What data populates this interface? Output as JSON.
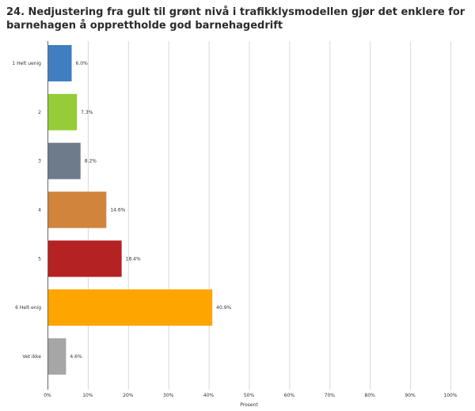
{
  "chart_data": {
    "type": "bar",
    "orientation": "horizontal",
    "title": "24. Nedjustering fra gult til grønt nivå i trafikklysmodellen gjør det enklere for barnehagen å opprettholde god barnehagedrift",
    "xlabel": "Prosent",
    "ylabel": "",
    "xlim": [
      0,
      100
    ],
    "x_ticks": [
      0,
      10,
      20,
      30,
      40,
      50,
      60,
      70,
      80,
      90,
      100
    ],
    "x_tick_labels": [
      "0%",
      "10%",
      "20%",
      "30%",
      "40%",
      "50%",
      "60%",
      "70%",
      "80%",
      "90%",
      "100%"
    ],
    "grid": true,
    "legend": false,
    "categories": [
      "1 Helt uenig",
      "2",
      "3",
      "4",
      "5",
      "6 Helt enig",
      "Vet ikke"
    ],
    "values": [
      6.0,
      7.3,
      8.2,
      14.6,
      18.4,
      40.9,
      4.6
    ],
    "value_labels": [
      "6.0%",
      "7.3%",
      "8.2%",
      "14.6%",
      "18.4%",
      "40.9%",
      "4.6%"
    ],
    "colors": [
      "#3f7fc1",
      "#96cc37",
      "#6e7b8b",
      "#d0843c",
      "#b42224",
      "#ffa500",
      "#a6a6a6"
    ]
  }
}
